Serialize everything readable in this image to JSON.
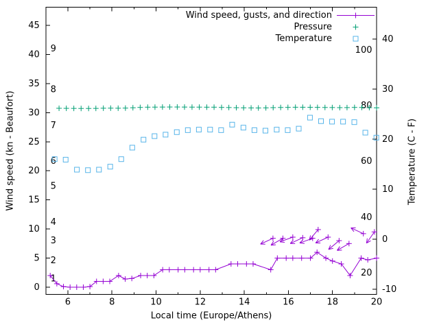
{
  "chart": {
    "legend": [
      {
        "label": "Wind speed, gusts, and direction"
      },
      {
        "label": "Pressure"
      },
      {
        "label": "Temperature"
      }
    ],
    "x_axis": {
      "label": "Local time (Europe/Athens)"
    },
    "y_left": {
      "label": "Wind speed (kn - Beaufort)"
    },
    "y_right": {
      "label": "Temperature (C - F)"
    }
  },
  "chart_data": {
    "type": "line",
    "title": "Wind speed, gusts, and direction / Pressure / Temperature",
    "xlabel": "Local time (Europe/Athens)",
    "x_range": [
      5,
      20
    ],
    "x_major_ticks": [
      6,
      8,
      10,
      12,
      14,
      16,
      18,
      20
    ],
    "x_minor_ticks": [
      5,
      7,
      9,
      11,
      13,
      15,
      17,
      19
    ],
    "grid": false,
    "legend_position": "top-right-inside",
    "y_left": {
      "label": "Wind speed (kn - Beaufort)",
      "range": [
        0,
        45
      ],
      "ticks": [
        0,
        5,
        10,
        15,
        20,
        25,
        30,
        35,
        40,
        45
      ],
      "beaufort_labels": [
        {
          "label": "1",
          "kn": 1.5
        },
        {
          "label": "2",
          "kn": 4.6
        },
        {
          "label": "3",
          "kn": 8
        },
        {
          "label": "4",
          "kn": 11.2
        },
        {
          "label": "5",
          "kn": 17.4
        },
        {
          "label": "6",
          "kn": 21.7
        },
        {
          "label": "7",
          "kn": 27.8
        },
        {
          "label": "8",
          "kn": 34
        },
        {
          "label": "9",
          "kn": 41
        }
      ]
    },
    "y_right": {
      "label": "Temperature (C - F)",
      "range": [
        -10,
        40
      ],
      "ticks": [
        -10,
        0,
        10,
        20,
        30,
        40
      ],
      "fahrenheit_labels": [
        {
          "label": "20",
          "c": -6.7
        },
        {
          "label": "40",
          "c": 4.4
        },
        {
          "label": "60",
          "c": 15.6
        },
        {
          "label": "80",
          "c": 26.7
        },
        {
          "label": "100",
          "c": 37.8
        }
      ]
    },
    "series": [
      {
        "name": "Wind speed",
        "axis": "left",
        "color": "#9400d3",
        "style": "linespoints",
        "marker": "plus",
        "points": [
          [
            5.2,
            2
          ],
          [
            5.5,
            0.6
          ],
          [
            5.8,
            0.1
          ],
          [
            6.1,
            0
          ],
          [
            6.4,
            0
          ],
          [
            6.7,
            0
          ],
          [
            7.0,
            0.1
          ],
          [
            7.3,
            1
          ],
          [
            7.6,
            1
          ],
          [
            7.9,
            1
          ],
          [
            8.3,
            2
          ],
          [
            8.6,
            1.4
          ],
          [
            8.9,
            1.5
          ],
          [
            9.3,
            2
          ],
          [
            9.6,
            2
          ],
          [
            9.9,
            2
          ],
          [
            10.3,
            3
          ],
          [
            10.6,
            3
          ],
          [
            11.0,
            3
          ],
          [
            11.3,
            3
          ],
          [
            11.7,
            3
          ],
          [
            12.0,
            3
          ],
          [
            12.4,
            3
          ],
          [
            12.7,
            3
          ],
          [
            13.4,
            4
          ],
          [
            13.7,
            4
          ],
          [
            14.1,
            4
          ],
          [
            14.4,
            4
          ],
          [
            15.2,
            3
          ],
          [
            15.5,
            5
          ],
          [
            15.9,
            5
          ],
          [
            16.2,
            5
          ],
          [
            16.6,
            5
          ],
          [
            17.0,
            5
          ],
          [
            17.3,
            6
          ],
          [
            17.7,
            5
          ],
          [
            18.0,
            4.5
          ],
          [
            18.4,
            4
          ],
          [
            18.8,
            2
          ],
          [
            19.3,
            5
          ],
          [
            19.6,
            4.7
          ],
          [
            20.0,
            5
          ]
        ]
      },
      {
        "name": "Wind gusts and direction",
        "axis": "left",
        "color": "#9400d3",
        "style": "vectors",
        "marker": "plus",
        "points": [
          [
            15.3,
            8.4,
            205
          ],
          [
            15.75,
            8.4,
            210
          ],
          [
            16.2,
            8.6,
            200
          ],
          [
            16.65,
            8.5,
            205
          ],
          [
            17.1,
            8.4,
            200
          ],
          [
            17.35,
            9.9,
            230
          ],
          [
            17.8,
            8.6,
            205
          ],
          [
            18.3,
            8.0,
            220
          ],
          [
            18.75,
            7.5,
            210
          ],
          [
            19.4,
            9.2,
            155
          ],
          [
            19.9,
            9.5,
            235
          ]
        ]
      },
      {
        "name": "Pressure",
        "axis": "left",
        "color": "#009e73",
        "style": "points",
        "marker": "plus",
        "points": [
          [
            5.6,
            30.75
          ],
          [
            5.93,
            30.74
          ],
          [
            6.27,
            30.73
          ],
          [
            6.6,
            30.72
          ],
          [
            6.94,
            30.72
          ],
          [
            7.27,
            30.73
          ],
          [
            7.61,
            30.76
          ],
          [
            7.94,
            30.77
          ],
          [
            8.28,
            30.76
          ],
          [
            8.61,
            30.78
          ],
          [
            8.95,
            30.84
          ],
          [
            9.28,
            30.9
          ],
          [
            9.62,
            30.94
          ],
          [
            9.95,
            30.95
          ],
          [
            10.29,
            30.96
          ],
          [
            10.62,
            30.97
          ],
          [
            10.96,
            30.97
          ],
          [
            11.29,
            30.96
          ],
          [
            11.63,
            30.95
          ],
          [
            11.96,
            30.95
          ],
          [
            12.3,
            30.94
          ],
          [
            12.63,
            30.94
          ],
          [
            12.97,
            30.9
          ],
          [
            13.3,
            30.88
          ],
          [
            13.64,
            30.85
          ],
          [
            13.97,
            30.83
          ],
          [
            14.31,
            30.81
          ],
          [
            14.64,
            30.8
          ],
          [
            14.98,
            30.82
          ],
          [
            15.31,
            30.86
          ],
          [
            15.65,
            30.89
          ],
          [
            15.98,
            30.91
          ],
          [
            16.32,
            30.93
          ],
          [
            16.65,
            30.93
          ],
          [
            16.99,
            30.92
          ],
          [
            17.32,
            30.91
          ],
          [
            17.66,
            30.89
          ],
          [
            17.99,
            30.88
          ],
          [
            18.33,
            30.86
          ],
          [
            18.66,
            30.87
          ],
          [
            19.0,
            30.9
          ],
          [
            19.33,
            30.89
          ],
          [
            19.67,
            30.86
          ],
          [
            20.0,
            30.83
          ]
        ]
      },
      {
        "name": "Temperature",
        "axis": "right",
        "color": "#56b4e9",
        "style": "points",
        "marker": "square-open",
        "points": [
          [
            5.4,
            16.0
          ],
          [
            5.9,
            15.9
          ],
          [
            6.41,
            13.9
          ],
          [
            6.91,
            13.8
          ],
          [
            7.41,
            13.9
          ],
          [
            7.92,
            14.5
          ],
          [
            8.42,
            16.0
          ],
          [
            8.92,
            18.3
          ],
          [
            9.43,
            19.9
          ],
          [
            9.93,
            20.6
          ],
          [
            10.43,
            20.9
          ],
          [
            10.94,
            21.4
          ],
          [
            11.44,
            21.8
          ],
          [
            11.94,
            21.9
          ],
          [
            12.45,
            21.9
          ],
          [
            12.95,
            21.8
          ],
          [
            13.45,
            22.9
          ],
          [
            13.96,
            22.3
          ],
          [
            14.46,
            21.8
          ],
          [
            14.96,
            21.7
          ],
          [
            15.47,
            21.9
          ],
          [
            15.97,
            21.8
          ],
          [
            16.47,
            22.1
          ],
          [
            16.98,
            24.3
          ],
          [
            17.48,
            23.6
          ],
          [
            17.98,
            23.5
          ],
          [
            18.48,
            23.5
          ],
          [
            18.99,
            23.4
          ],
          [
            19.49,
            21.3
          ],
          [
            19.99,
            20.3
          ]
        ]
      }
    ]
  }
}
